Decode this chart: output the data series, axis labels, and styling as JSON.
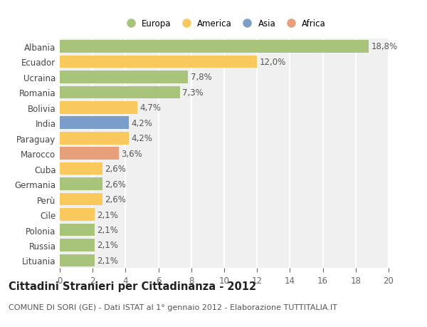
{
  "countries": [
    "Albania",
    "Ecuador",
    "Ucraina",
    "Romania",
    "Bolivia",
    "India",
    "Paraguay",
    "Marocco",
    "Cuba",
    "Germania",
    "Perù",
    "Cile",
    "Polonia",
    "Russia",
    "Lituania"
  ],
  "values": [
    18.8,
    12.0,
    7.8,
    7.3,
    4.7,
    4.2,
    4.2,
    3.6,
    2.6,
    2.6,
    2.6,
    2.1,
    2.1,
    2.1,
    2.1
  ],
  "labels": [
    "18,8%",
    "12,0%",
    "7,8%",
    "7,3%",
    "4,7%",
    "4,2%",
    "4,2%",
    "3,6%",
    "2,6%",
    "2,6%",
    "2,6%",
    "2,1%",
    "2,1%",
    "2,1%",
    "2,1%"
  ],
  "colors": [
    "#a8c47a",
    "#f9c95d",
    "#a8c47a",
    "#a8c47a",
    "#f9c95d",
    "#7a9ec9",
    "#f9c95d",
    "#e8a07a",
    "#f9c95d",
    "#a8c47a",
    "#f9c95d",
    "#f9c95d",
    "#a8c47a",
    "#a8c47a",
    "#a8c47a"
  ],
  "legend_labels": [
    "Europa",
    "America",
    "Asia",
    "Africa"
  ],
  "legend_colors": [
    "#a8c47a",
    "#f9c95d",
    "#7a9ec9",
    "#e8a07a"
  ],
  "xlim": [
    0,
    20
  ],
  "xticks": [
    0,
    2,
    4,
    6,
    8,
    10,
    12,
    14,
    16,
    18,
    20
  ],
  "title": "Cittadini Stranieri per Cittadinanza - 2012",
  "subtitle": "COMUNE DI SORI (GE) - Dati ISTAT al 1° gennaio 2012 - Elaborazione TUTTITALIA.IT",
  "bg_color": "#ffffff",
  "plot_bg_color": "#f0f0f0",
  "grid_color": "#ffffff",
  "bar_height": 0.82,
  "label_fontsize": 8.5,
  "tick_fontsize": 8.5,
  "title_fontsize": 10.5,
  "subtitle_fontsize": 8.0
}
